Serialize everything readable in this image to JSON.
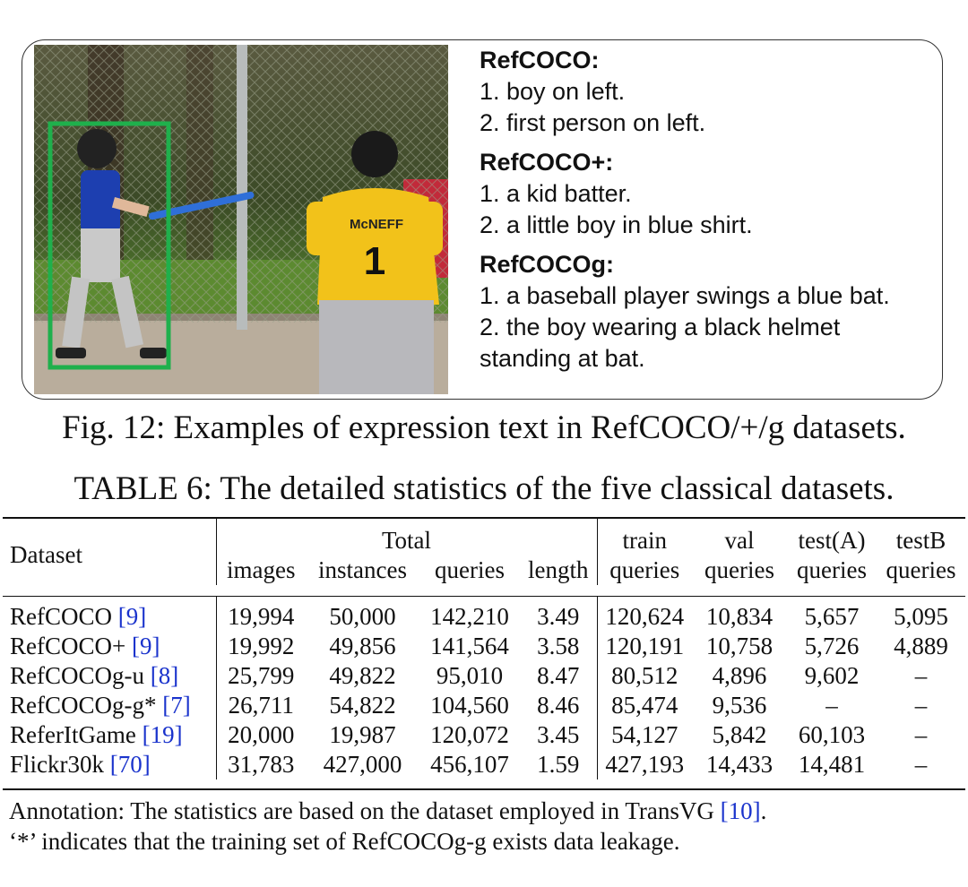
{
  "figure": {
    "groups": [
      {
        "title": "RefCOCO:",
        "lines": [
          "1. boy on left.",
          "2. first person on left."
        ]
      },
      {
        "title": "RefCOCO+:",
        "lines": [
          "1. a kid batter.",
          "2. a little boy in blue shirt."
        ]
      },
      {
        "title": "RefCOCOg:",
        "lines": [
          "1. a baseball player swings a blue bat.",
          "2. the boy wearing a black helmet",
          "standing at bat."
        ]
      }
    ],
    "jersey_name": "McNEFF",
    "jersey_number": "1",
    "caption": "Fig. 12: Examples of expression text in RefCOCO/+/g datasets.",
    "colors": {
      "box": "#1fb04c",
      "cite": "#1a33cc"
    }
  },
  "table": {
    "caption": "TABLE 6: The detailed statistics of the five classical datasets.",
    "header": {
      "dataset": "Dataset",
      "total": "Total",
      "total_cols": [
        "images",
        "instances",
        "queries",
        "length"
      ],
      "split_top": [
        "train",
        "val",
        "test(A)",
        "testB"
      ],
      "split_bottom": [
        "queries",
        "queries",
        "queries",
        "queries"
      ]
    },
    "rows": [
      {
        "name": "RefCOCO",
        "cite": "[9]",
        "values": [
          "19,994",
          "50,000",
          "142,210",
          "3.49",
          "120,624",
          "10,834",
          "5,657",
          "5,095"
        ]
      },
      {
        "name": "RefCOCO+",
        "cite": "[9]",
        "values": [
          "19,992",
          "49,856",
          "141,564",
          "3.58",
          "120,191",
          "10,758",
          "5,726",
          "4,889"
        ]
      },
      {
        "name": "RefCOCOg-u",
        "cite": "[8]",
        "values": [
          "25,799",
          "49,822",
          "95,010",
          "8.47",
          "80,512",
          "4,896",
          "9,602",
          "–"
        ]
      },
      {
        "name": "RefCOCOg-g*",
        "cite": "[7]",
        "values": [
          "26,711",
          "54,822",
          "104,560",
          "8.46",
          "85,474",
          "9,536",
          "–",
          "–"
        ]
      },
      {
        "name": "ReferItGame",
        "cite": "[19]",
        "values": [
          "20,000",
          "19,987",
          "120,072",
          "3.45",
          "54,127",
          "5,842",
          "60,103",
          "–"
        ]
      },
      {
        "name": "Flickr30k",
        "cite": "[70]",
        "values": [
          "31,783",
          "427,000",
          "456,107",
          "1.59",
          "427,193",
          "14,433",
          "14,481",
          "–"
        ]
      }
    ],
    "annotation_line1_pre": "Annotation: The statistics are based on the dataset employed in TransVG ",
    "annotation_cite": "[10]",
    "annotation_line1_post": ".",
    "annotation_line2": "‘*’ indicates that the training set of RefCOCOg-g exists data leakage."
  }
}
